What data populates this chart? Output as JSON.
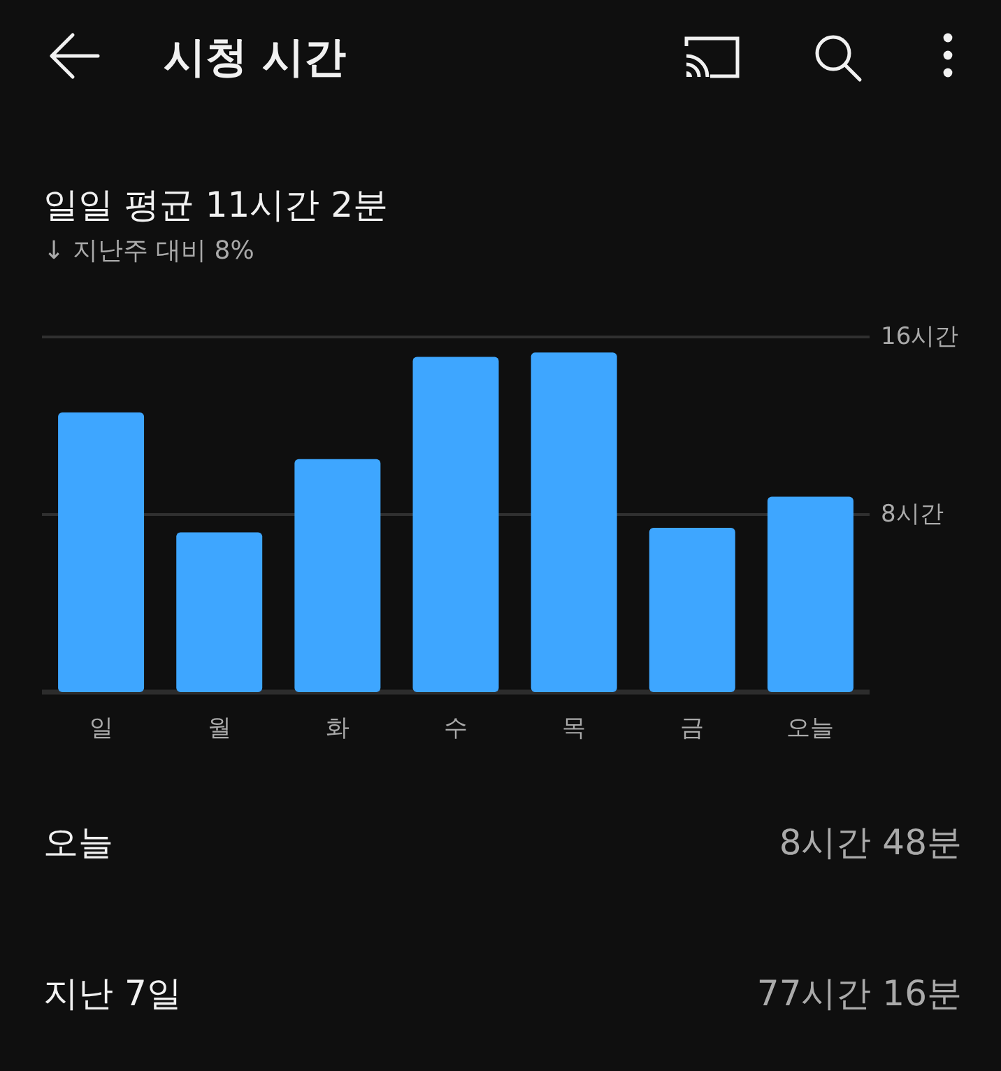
{
  "chart_data": {
    "type": "bar",
    "title": "시청 시간",
    "subtitle": "일일 평균 11시간 2분",
    "annotations": [
      "↓ 지난주 대비 8%",
      "오늘",
      "8시간 48분",
      "지난 7일",
      "77시간 16분"
    ],
    "categories": [
      "일",
      "월",
      "화",
      "수",
      "목",
      "금",
      "오늘"
    ],
    "values": [
      12.6,
      7.2,
      10.5,
      15.1,
      15.3,
      7.4,
      8.8
    ],
    "color": "#3ea6ff",
    "ylim": [
      0,
      16
    ],
    "yticks": [
      {
        "value": 8,
        "label": "8시간"
      },
      {
        "value": 16,
        "label": "16시간"
      }
    ],
    "grid": "y"
  }
}
